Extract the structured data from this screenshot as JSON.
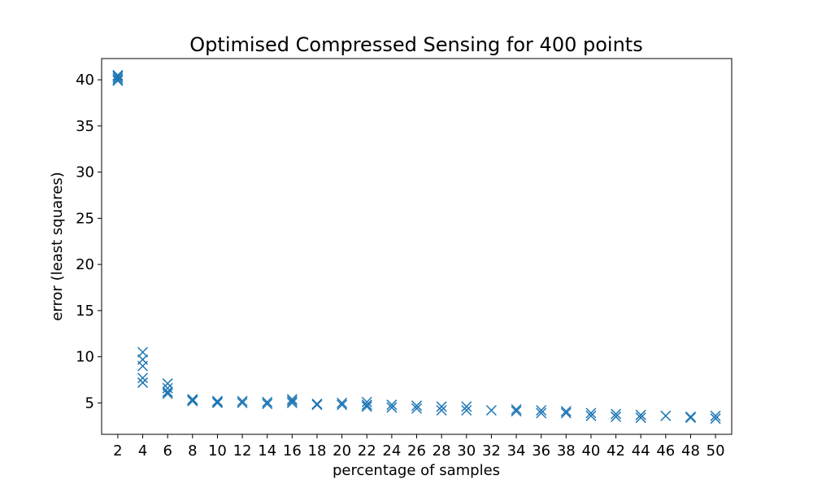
{
  "chart_data": {
    "type": "scatter",
    "title": "Optimised Compressed Sensing for 400 points",
    "xlabel": "percentage of samples",
    "ylabel": "error (least squares)",
    "x_ticks": [
      "2",
      "4",
      "6",
      "8",
      "10",
      "12",
      "14",
      "16",
      "18",
      "20",
      "22",
      "24",
      "26",
      "28",
      "30",
      "32",
      "34",
      "36",
      "38",
      "40",
      "42",
      "44",
      "46",
      "48",
      "50"
    ],
    "y_ticks": [
      "5",
      "10",
      "15",
      "20",
      "25",
      "30",
      "35",
      "40"
    ],
    "xlim": [
      0.7,
      51.3
    ],
    "ylim": [
      1.6,
      42.3
    ],
    "grid": false,
    "marker": "x",
    "marker_color": "#1f77b4",
    "series": [
      {
        "points": [
          [
            2,
            40.4
          ],
          [
            2,
            40.2
          ],
          [
            2,
            40.0
          ],
          [
            2,
            39.9
          ],
          [
            2,
            40.5
          ],
          [
            4,
            10.5
          ],
          [
            4,
            9.7
          ],
          [
            4,
            9.0
          ],
          [
            4,
            7.7
          ],
          [
            4,
            7.2
          ],
          [
            6,
            7.1
          ],
          [
            6,
            6.6
          ],
          [
            6,
            6.2
          ],
          [
            6,
            6.0
          ],
          [
            8,
            5.4
          ],
          [
            8,
            5.2
          ],
          [
            8,
            5.3
          ],
          [
            10,
            5.2
          ],
          [
            10,
            5.0
          ],
          [
            10,
            5.1
          ],
          [
            12,
            5.2
          ],
          [
            12,
            5.0
          ],
          [
            14,
            5.1
          ],
          [
            14,
            4.9
          ],
          [
            16,
            5.4
          ],
          [
            16,
            5.2
          ],
          [
            16,
            5.0
          ],
          [
            18,
            4.9
          ],
          [
            18,
            4.8
          ],
          [
            20,
            5.0
          ],
          [
            20,
            4.8
          ],
          [
            22,
            5.1
          ],
          [
            22,
            4.8
          ],
          [
            22,
            4.6
          ],
          [
            24,
            4.8
          ],
          [
            24,
            4.5
          ],
          [
            26,
            4.7
          ],
          [
            26,
            4.4
          ],
          [
            28,
            4.6
          ],
          [
            28,
            4.2
          ],
          [
            30,
            4.6
          ],
          [
            30,
            4.2
          ],
          [
            32,
            4.2
          ],
          [
            34,
            4.3
          ],
          [
            34,
            4.1
          ],
          [
            36,
            4.2
          ],
          [
            36,
            3.9
          ],
          [
            38,
            4.1
          ],
          [
            38,
            3.9
          ],
          [
            40,
            3.9
          ],
          [
            40,
            3.6
          ],
          [
            42,
            3.8
          ],
          [
            42,
            3.5
          ],
          [
            44,
            3.7
          ],
          [
            44,
            3.4
          ],
          [
            46,
            3.6
          ],
          [
            48,
            3.5
          ],
          [
            48,
            3.4
          ],
          [
            50,
            3.6
          ],
          [
            50,
            3.3
          ]
        ]
      }
    ]
  }
}
